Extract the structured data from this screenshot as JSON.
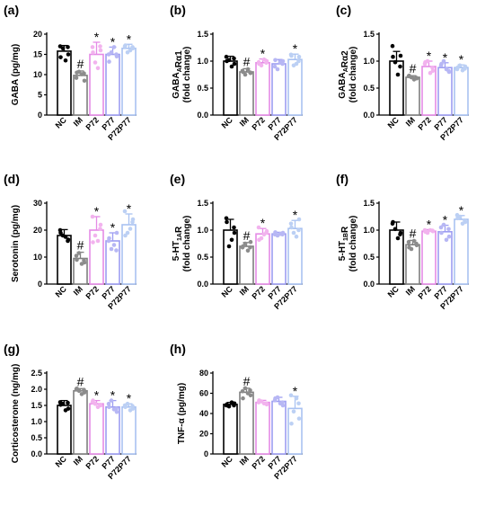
{
  "figure": {
    "categories": [
      "NC",
      "IM",
      "P72",
      "P77",
      "P72P77"
    ],
    "colors": [
      "#000000",
      "#7f7f7f",
      "#e58be6",
      "#9d9df2",
      "#a9c2f2"
    ],
    "point_fill": [
      "#000000",
      "#8c8c8c",
      "#f2b3ee",
      "#b7b7f4",
      "#bcd0f4"
    ]
  },
  "chart_data": [
    {
      "type": "bar",
      "panel_label": "(a)",
      "ylabel_lines": [
        [
          "GABA (pg/mg)"
        ]
      ],
      "ylim": [
        0,
        20
      ],
      "yticks": [
        0,
        5,
        10,
        15,
        20
      ],
      "categories": [
        "NC",
        "IM",
        "P72",
        "P77",
        "P72P77"
      ],
      "values": [
        15.8,
        9.8,
        15.0,
        15.0,
        16.5
      ],
      "errors": [
        1.4,
        1.1,
        3.0,
        1.8,
        1.0
      ],
      "points": [
        [
          17.0,
          15.0,
          16.5,
          13.5,
          14.3,
          16.8
        ],
        [
          9.2,
          8.5,
          10.7,
          10.1,
          10.5,
          10.3
        ],
        [
          16.8,
          16.0,
          13.0,
          11.6,
          15.5,
          17.0
        ],
        [
          15.0,
          14.5,
          15.5,
          16.8,
          13.2,
          15.0
        ],
        [
          17.0,
          16.5,
          15.5,
          16.0,
          17.2,
          16.8
        ]
      ],
      "marks": [
        "",
        "#",
        "*",
        "*",
        "*"
      ]
    },
    {
      "type": "bar",
      "panel_label": "(b)",
      "ylabel_lines": [
        [
          "GABA",
          {
            "sub": "A"
          },
          "Rα1"
        ],
        [
          "(fold change)"
        ]
      ],
      "ylim": [
        0,
        1.5
      ],
      "yticks": [
        0.0,
        0.5,
        1.0,
        1.5
      ],
      "categories": [
        "NC",
        "IM",
        "P72",
        "P77",
        "P72P77"
      ],
      "values": [
        1.0,
        0.8,
        0.97,
        0.95,
        1.03
      ],
      "errors": [
        0.09,
        0.06,
        0.07,
        0.08,
        0.1
      ],
      "points": [
        [
          1.08,
          0.95,
          1.02,
          0.9,
          1.0,
          1.05
        ],
        [
          0.82,
          0.78,
          0.75,
          0.85,
          0.8,
          0.79
        ],
        [
          0.98,
          1.0,
          0.92,
          1.03,
          0.95,
          0.97
        ],
        [
          0.9,
          1.0,
          0.85,
          0.98,
          1.02,
          0.95
        ],
        [
          1.12,
          1.08,
          0.92,
          0.95,
          1.1,
          1.0
        ]
      ],
      "marks": [
        "",
        "#",
        "*",
        "",
        "*"
      ]
    },
    {
      "type": "bar",
      "panel_label": "(c)",
      "ylabel_lines": [
        [
          "GABA",
          {
            "sub": "A"
          },
          "Rα2"
        ],
        [
          "(fold change)"
        ]
      ],
      "ylim": [
        0,
        1.5
      ],
      "yticks": [
        0.0,
        0.5,
        1.0,
        1.5
      ],
      "categories": [
        "NC",
        "IM",
        "P72",
        "P77",
        "P72P77"
      ],
      "values": [
        1.0,
        0.7,
        0.9,
        0.88,
        0.88
      ],
      "errors": [
        0.18,
        0.03,
        0.1,
        0.09,
        0.05
      ],
      "points": [
        [
          1.28,
          1.1,
          0.98,
          0.75,
          1.08,
          0.9
        ],
        [
          0.72,
          0.68,
          0.7,
          0.66,
          0.73,
          0.69
        ],
        [
          0.95,
          0.82,
          1.0,
          0.78,
          0.98,
          0.88
        ],
        [
          0.92,
          0.8,
          1.0,
          0.85,
          0.95,
          0.82
        ],
        [
          0.85,
          0.9,
          0.92,
          0.83,
          0.88,
          0.86
        ]
      ],
      "marks": [
        "",
        "#",
        "*",
        "*",
        "*"
      ]
    },
    {
      "type": "bar",
      "panel_label": "(d)",
      "ylabel_lines": [
        [
          "Serotonin (pg/mg)"
        ]
      ],
      "ylim": [
        0,
        30
      ],
      "yticks": [
        0,
        10,
        20,
        30
      ],
      "categories": [
        "NC",
        "IM",
        "P72",
        "P77",
        "P72P77"
      ],
      "values": [
        18.0,
        9.5,
        20.0,
        16.0,
        22.0
      ],
      "errors": [
        2.2,
        2.3,
        5.0,
        3.0,
        4.0
      ],
      "points": [
        [
          20.0,
          16.5,
          18.0,
          17.5,
          19.0,
          16.0
        ],
        [
          10.5,
          8.0,
          11.5,
          7.5,
          9.0,
          8.8
        ],
        [
          25.0,
          22.0,
          18.0,
          16.0,
          15.5,
          20.5
        ],
        [
          16.0,
          19.0,
          13.0,
          14.5,
          17.0,
          12.5
        ],
        [
          27.0,
          24.0,
          19.0,
          20.5,
          18.0,
          23.0
        ]
      ],
      "marks": [
        "",
        "#",
        "*",
        "*",
        "*"
      ]
    },
    {
      "type": "bar",
      "panel_label": "(e)",
      "ylabel_lines": [
        [
          "5-HT",
          {
            "sub": "1A"
          },
          "R"
        ],
        [
          "(fold change)"
        ]
      ],
      "ylim": [
        0,
        1.5
      ],
      "yticks": [
        0.0,
        0.5,
        1.0,
        1.5
      ],
      "categories": [
        "NC",
        "IM",
        "P72",
        "P77",
        "P72P77"
      ],
      "values": [
        1.0,
        0.7,
        0.93,
        0.93,
        1.03
      ],
      "errors": [
        0.2,
        0.07,
        0.1,
        0.03,
        0.15
      ],
      "points": [
        [
          1.22,
          0.95,
          0.7,
          0.82,
          1.15,
          1.05
        ],
        [
          0.68,
          0.78,
          0.75,
          0.62,
          0.7,
          0.68
        ],
        [
          1.05,
          0.98,
          0.85,
          0.92,
          0.82,
          0.95
        ],
        [
          0.92,
          0.95,
          0.9,
          0.93,
          0.96,
          0.92
        ],
        [
          1.12,
          1.2,
          0.95,
          0.88,
          1.05,
          1.0
        ]
      ],
      "marks": [
        "",
        "#",
        "*",
        "",
        "*"
      ]
    },
    {
      "type": "bar",
      "panel_label": "(f)",
      "ylabel_lines": [
        [
          "5-HT",
          {
            "sub": "1B"
          },
          "R"
        ],
        [
          "(fold change)"
        ]
      ],
      "ylim": [
        0,
        1.5
      ],
      "yticks": [
        0.0,
        0.5,
        1.0,
        1.5
      ],
      "categories": [
        "NC",
        "IM",
        "P72",
        "P77",
        "P72P77"
      ],
      "values": [
        1.0,
        0.73,
        0.98,
        0.97,
        1.2
      ],
      "errors": [
        0.15,
        0.08,
        0.03,
        0.12,
        0.07
      ],
      "points": [
        [
          1.12,
          0.95,
          1.02,
          0.85,
          1.15,
          0.92
        ],
        [
          0.78,
          0.72,
          0.65,
          0.8,
          0.68,
          0.75
        ],
        [
          1.0,
          0.98,
          0.95,
          1.0,
          0.97,
          0.99
        ],
        [
          1.05,
          0.88,
          1.1,
          0.82,
          0.95,
          1.02
        ],
        [
          1.28,
          1.15,
          1.25,
          1.12,
          1.22,
          1.18
        ]
      ],
      "marks": [
        "",
        "#",
        "*",
        "*",
        "*"
      ]
    },
    {
      "type": "bar",
      "panel_label": "(g)",
      "ylabel_lines": [
        [
          "Corticosterone (ng/mg)"
        ]
      ],
      "ylim": [
        0,
        2.5
      ],
      "yticks": [
        0.0,
        0.5,
        1.0,
        1.5,
        2.0,
        2.5
      ],
      "categories": [
        "NC",
        "IM",
        "P72",
        "P77",
        "P72P77"
      ],
      "values": [
        1.5,
        1.95,
        1.55,
        1.45,
        1.45
      ],
      "errors": [
        0.15,
        0.07,
        0.1,
        0.2,
        0.1
      ],
      "points": [
        [
          1.6,
          1.4,
          1.55,
          1.35,
          1.52,
          1.58
        ],
        [
          2.0,
          1.9,
          1.95,
          1.85,
          2.02,
          1.98
        ],
        [
          1.6,
          1.5,
          1.55,
          1.45,
          1.65,
          1.52
        ],
        [
          1.55,
          1.3,
          1.65,
          1.38,
          1.45,
          1.4
        ],
        [
          1.5,
          1.4,
          1.55,
          1.35,
          1.45,
          1.48
        ]
      ],
      "marks": [
        "",
        "#",
        "*",
        "*",
        "*"
      ]
    },
    {
      "type": "bar",
      "panel_label": "(h)",
      "ylabel_lines": [
        [
          "TNF-α (pg/mg)"
        ]
      ],
      "ylim": [
        0,
        80
      ],
      "yticks": [
        0,
        20,
        40,
        60,
        80
      ],
      "categories": [
        "NC",
        "IM",
        "P72",
        "P77",
        "P72P77"
      ],
      "values": [
        49,
        61,
        51,
        52,
        45
      ],
      "errors": [
        2,
        4,
        2,
        4,
        12
      ],
      "points": [
        [
          48,
          50,
          47,
          51,
          49,
          48
        ],
        [
          62,
          58,
          65,
          60,
          55,
          63
        ],
        [
          51,
          49,
          52,
          50,
          53,
          50
        ],
        [
          53,
          48,
          56,
          50,
          55,
          51
        ],
        [
          58,
          35,
          42,
          55,
          30,
          50
        ]
      ],
      "marks": [
        "",
        "#",
        "",
        "",
        "*"
      ]
    }
  ]
}
